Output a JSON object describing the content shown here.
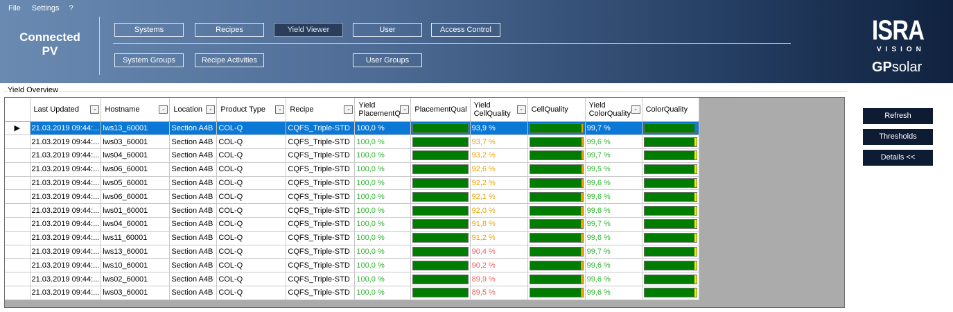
{
  "menu": [
    "File",
    "Settings",
    "?"
  ],
  "app_title": [
    "Connected",
    "PV"
  ],
  "nav_row1": [
    "Systems",
    "Recipes",
    "Yield Viewer",
    "User",
    "Access Control"
  ],
  "nav_row2": [
    "System Groups",
    "Recipe Activities",
    "User Groups"
  ],
  "active_nav": "Yield Viewer",
  "logo": {
    "isra": "ISRA",
    "vision": "VISION",
    "gp": "GP",
    "solar": "solar"
  },
  "group_title": "Yield Overview",
  "columns": [
    "Last Updated",
    "Hostname",
    "Location",
    "Product Type",
    "Recipe",
    "Yield\nPlacementQ",
    "PlacementQual",
    "Yield\nCellQuality",
    "CellQuality",
    "Yield\nColorQuality",
    "ColorQuality"
  ],
  "sortable_columns": [
    0,
    1,
    2,
    3,
    4,
    5,
    7,
    9
  ],
  "colors": {
    "green_text": "#2fb52f",
    "orange_text": "#f0a000",
    "red_text": "#f0625a",
    "bar_green": "#007c00",
    "bar_orange": "#f0a000",
    "bar_yellow": "#f2f000",
    "bar_blue": "#0c78d6",
    "selected_row": "#0c78d6",
    "side_button": "#0d1b33"
  },
  "rows": [
    {
      "updated": "21.03.2019 09:44:...",
      "host": "lws13_60001",
      "location": "Section A4B",
      "product": "COL-Q",
      "recipe": "CQFS_Triple-STD",
      "yield_placement": "100,0 %",
      "placement_pct": 100,
      "yield_cell": "93,9 %",
      "cell_pct": 93.9,
      "yield_color": "99,7 %",
      "color_pct": 99.7,
      "placement_color": "green",
      "cell_color": "orange",
      "color_color": "green"
    },
    {
      "updated": "21.03.2019 09:44:...",
      "host": "lws03_60001",
      "location": "Section A4B",
      "product": "COL-Q",
      "recipe": "CQFS_Triple-STD",
      "yield_placement": "100,0 %",
      "placement_pct": 100,
      "yield_cell": "93,7 %",
      "cell_pct": 93.7,
      "yield_color": "99,6 %",
      "color_pct": 99.6,
      "placement_color": "green",
      "cell_color": "orange",
      "color_color": "green"
    },
    {
      "updated": "21.03.2019 09:44:...",
      "host": "lws04_60001",
      "location": "Section A4B",
      "product": "COL-Q",
      "recipe": "CQFS_Triple-STD",
      "yield_placement": "100,0 %",
      "placement_pct": 100,
      "yield_cell": "93,2 %",
      "cell_pct": 93.2,
      "yield_color": "99,7 %",
      "color_pct": 99.7,
      "placement_color": "green",
      "cell_color": "orange",
      "color_color": "green"
    },
    {
      "updated": "21.03.2019 09:44:...",
      "host": "lws06_60001",
      "location": "Section A4B",
      "product": "COL-Q",
      "recipe": "CQFS_Triple-STD",
      "yield_placement": "100,0 %",
      "placement_pct": 100,
      "yield_cell": "92,6 %",
      "cell_pct": 92.6,
      "yield_color": "99,5 %",
      "color_pct": 99.5,
      "placement_color": "green",
      "cell_color": "orange",
      "color_color": "green"
    },
    {
      "updated": "21.03.2019 09:44:...",
      "host": "lws05_60001",
      "location": "Section A4B",
      "product": "COL-Q",
      "recipe": "CQFS_Triple-STD",
      "yield_placement": "100,0 %",
      "placement_pct": 100,
      "yield_cell": "92,2 %",
      "cell_pct": 92.2,
      "yield_color": "99,6 %",
      "color_pct": 99.6,
      "placement_color": "green",
      "cell_color": "orange",
      "color_color": "green"
    },
    {
      "updated": "21.03.2019 09:44:...",
      "host": "lws06_60001",
      "location": "Section A4B",
      "product": "COL-Q",
      "recipe": "CQFS_Triple-STD",
      "yield_placement": "100,0 %",
      "placement_pct": 100,
      "yield_cell": "92,1 %",
      "cell_pct": 92.1,
      "yield_color": "99,6 %",
      "color_pct": 99.6,
      "placement_color": "green",
      "cell_color": "orange",
      "color_color": "green"
    },
    {
      "updated": "21.03.2019 09:44:...",
      "host": "lws01_60001",
      "location": "Section A4B",
      "product": "COL-Q",
      "recipe": "CQFS_Triple-STD",
      "yield_placement": "100,0 %",
      "placement_pct": 100,
      "yield_cell": "92,0 %",
      "cell_pct": 92.0,
      "yield_color": "99,6 %",
      "color_pct": 99.6,
      "placement_color": "green",
      "cell_color": "orange",
      "color_color": "green"
    },
    {
      "updated": "21.03.2019 09:44:...",
      "host": "lws04_60001",
      "location": "Section A4B",
      "product": "COL-Q",
      "recipe": "CQFS_Triple-STD",
      "yield_placement": "100,0 %",
      "placement_pct": 100,
      "yield_cell": "91,8 %",
      "cell_pct": 91.8,
      "yield_color": "99,7 %",
      "color_pct": 99.7,
      "placement_color": "green",
      "cell_color": "orange",
      "color_color": "green"
    },
    {
      "updated": "21.03.2019 09:44:...",
      "host": "lws11_60001",
      "location": "Section A4B",
      "product": "COL-Q",
      "recipe": "CQFS_Triple-STD",
      "yield_placement": "100,0 %",
      "placement_pct": 100,
      "yield_cell": "91,2 %",
      "cell_pct": 91.2,
      "yield_color": "99,6 %",
      "color_pct": 99.6,
      "placement_color": "green",
      "cell_color": "orange",
      "color_color": "green"
    },
    {
      "updated": "21.03.2019 09:44:...",
      "host": "lws13_60001",
      "location": "Section A4B",
      "product": "COL-Q",
      "recipe": "CQFS_Triple-STD",
      "yield_placement": "100,0 %",
      "placement_pct": 100,
      "yield_cell": "90,4 %",
      "cell_pct": 90.4,
      "yield_color": "99,7 %",
      "color_pct": 99.7,
      "placement_color": "green",
      "cell_color": "red",
      "color_color": "green"
    },
    {
      "updated": "21.03.2019 09:44:...",
      "host": "lws10_60001",
      "location": "Section A4B",
      "product": "COL-Q",
      "recipe": "CQFS_Triple-STD",
      "yield_placement": "100,0 %",
      "placement_pct": 100,
      "yield_cell": "90,2 %",
      "cell_pct": 90.2,
      "yield_color": "99,6 %",
      "color_pct": 99.6,
      "placement_color": "green",
      "cell_color": "red",
      "color_color": "green"
    },
    {
      "updated": "21.03.2019 09:44:...",
      "host": "lws02_60001",
      "location": "Section A4B",
      "product": "COL-Q",
      "recipe": "CQFS_Triple-STD",
      "yield_placement": "100,0 %",
      "placement_pct": 100,
      "yield_cell": "89,9 %",
      "cell_pct": 89.9,
      "yield_color": "99,6 %",
      "color_pct": 99.6,
      "placement_color": "green",
      "cell_color": "red",
      "color_color": "green"
    },
    {
      "updated": "21.03.2019 09:44:...",
      "host": "lws03_60001",
      "location": "Section A4B",
      "product": "COL-Q",
      "recipe": "CQFS_Triple-STD",
      "yield_placement": "100,0 %",
      "placement_pct": 100,
      "yield_cell": "89,5 %",
      "cell_pct": 89.5,
      "yield_color": "99,6 %",
      "color_pct": 99.6,
      "placement_color": "green",
      "cell_color": "red",
      "color_color": "green"
    }
  ],
  "selected_row": 0,
  "side_buttons": [
    "Refresh",
    "Thresholds",
    "Details <<"
  ]
}
